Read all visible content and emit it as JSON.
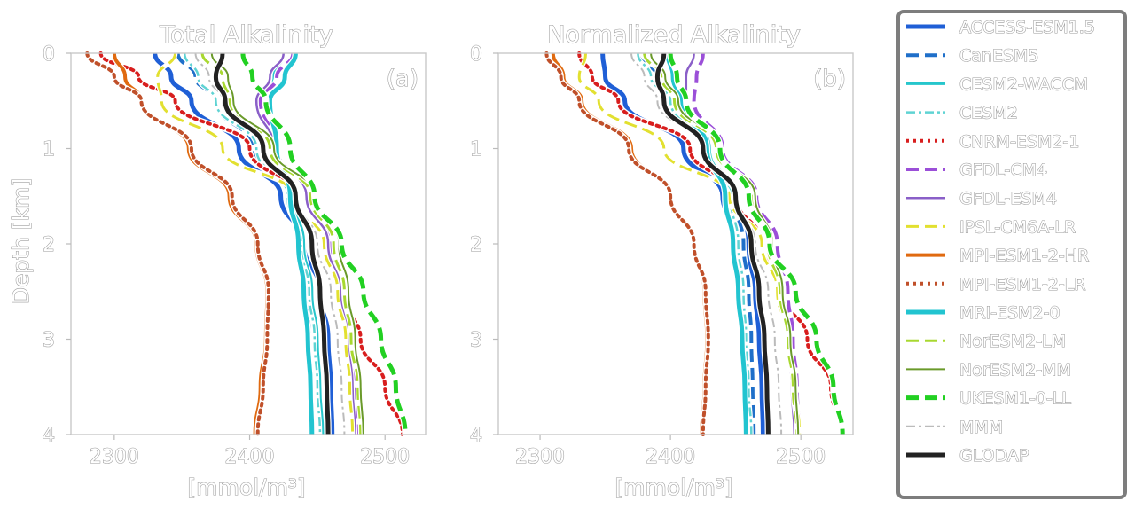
{
  "chart_data": [
    {
      "type": "line",
      "panel": "a",
      "title": "Total Alkalinity",
      "panel_label": "(a)",
      "xlabel": "[mmol/m³]",
      "ylabel": "Depth [km]",
      "xlim": [
        2268,
        2530
      ],
      "ylim": [
        4,
        0
      ],
      "xticks": [
        2300,
        2400,
        2500
      ],
      "yticks": [
        0,
        1,
        2,
        3,
        4
      ],
      "y": [
        0,
        0.25,
        0.5,
        1.0,
        1.5,
        2.0,
        2.5,
        3.0,
        3.5,
        4.0
      ],
      "series": [
        {
          "name": "ACCESS-ESM1.5",
          "x": [
            2330,
            2342,
            2357,
            2392,
            2423,
            2440,
            2452,
            2458,
            2460,
            2461
          ]
        },
        {
          "name": "CanESM5",
          "x": [
            2347,
            2360,
            2375,
            2403,
            2428,
            2438,
            2442,
            2444,
            2445,
            2446
          ]
        },
        {
          "name": "CESM2-WACCM",
          "x": [
            2425,
            2418,
            2410,
            2418,
            2432,
            2440,
            2446,
            2450,
            2452,
            2454
          ]
        },
        {
          "name": "CESM2",
          "x": [
            2352,
            2362,
            2375,
            2405,
            2428,
            2438,
            2444,
            2448,
            2450,
            2452
          ]
        },
        {
          "name": "CNRM-ESM2-1",
          "x": [
            2290,
            2318,
            2345,
            2400,
            2432,
            2455,
            2467,
            2482,
            2500,
            2513
          ]
        },
        {
          "name": "GFDL-CM4",
          "x": [
            2432,
            2420,
            2408,
            2420,
            2444,
            2460,
            2469,
            2475,
            2478,
            2480
          ]
        },
        {
          "name": "GFDL-ESM4",
          "x": [
            2425,
            2415,
            2405,
            2418,
            2442,
            2458,
            2467,
            2473,
            2476,
            2478
          ]
        },
        {
          "name": "IPSL-CM6A-LR",
          "x": [
            2345,
            2332,
            2335,
            2380,
            2432,
            2455,
            2465,
            2471,
            2474,
            2476
          ]
        },
        {
          "name": "MPI-ESM1-2-HR",
          "x": [
            2300,
            2308,
            2320,
            2355,
            2385,
            2405,
            2413,
            2412,
            2408,
            2404
          ]
        },
        {
          "name": "MPI-ESM1-2-LR",
          "x": [
            2280,
            2300,
            2320,
            2357,
            2387,
            2406,
            2414,
            2413,
            2410,
            2406
          ]
        },
        {
          "name": "MRI-ESM2-0",
          "x": [
            2434,
            2426,
            2415,
            2420,
            2430,
            2436,
            2440,
            2443,
            2445,
            2446
          ]
        },
        {
          "name": "NorESM2-LM",
          "x": [
            2365,
            2380,
            2385,
            2415,
            2445,
            2462,
            2470,
            2475,
            2480,
            2482
          ]
        },
        {
          "name": "NorESM2-MM",
          "x": [
            2372,
            2384,
            2388,
            2418,
            2448,
            2466,
            2473,
            2478,
            2482,
            2484
          ]
        },
        {
          "name": "UKESM1-0-LL",
          "x": [
            2395,
            2402,
            2412,
            2430,
            2448,
            2468,
            2484,
            2497,
            2508,
            2515
          ]
        },
        {
          "name": "MMM",
          "x": [
            2360,
            2370,
            2380,
            2410,
            2435,
            2450,
            2460,
            2465,
            2468,
            2470
          ]
        },
        {
          "name": "GLODAP",
          "x": [
            2380,
            2375,
            2382,
            2410,
            2434,
            2446,
            2452,
            2455,
            2457,
            2458
          ]
        }
      ]
    },
    {
      "type": "line",
      "panel": "b",
      "title": "Normalized Alkalinity",
      "panel_label": "(b)",
      "xlabel": "[mmol/m³]",
      "ylabel": "",
      "xlim": [
        2268,
        2540
      ],
      "ylim": [
        4,
        0
      ],
      "xticks": [
        2300,
        2400,
        2500
      ],
      "yticks": [
        0,
        1,
        2,
        3,
        4
      ],
      "y": [
        0,
        0.25,
        0.5,
        1.0,
        1.5,
        2.0,
        2.5,
        3.0,
        3.5,
        4.0
      ],
      "series": [
        {
          "name": "ACCESS-ESM1.5",
          "x": [
            2348,
            2350,
            2365,
            2410,
            2440,
            2458,
            2465,
            2468,
            2470,
            2471
          ]
        },
        {
          "name": "CanESM5",
          "x": [
            2375,
            2390,
            2405,
            2430,
            2448,
            2456,
            2460,
            2462,
            2463,
            2464
          ]
        },
        {
          "name": "CESM2-WACCM",
          "x": [
            2385,
            2395,
            2410,
            2430,
            2446,
            2452,
            2455,
            2457,
            2459,
            2460
          ]
        },
        {
          "name": "CESM2",
          "x": [
            2375,
            2385,
            2400,
            2428,
            2446,
            2452,
            2456,
            2458,
            2460,
            2462
          ]
        },
        {
          "name": "CNRM-ESM2-1",
          "x": [
            2330,
            2340,
            2360,
            2415,
            2450,
            2470,
            2485,
            2505,
            2523,
            2532
          ]
        },
        {
          "name": "GFDL-CM4",
          "x": [
            2425,
            2420,
            2418,
            2440,
            2466,
            2482,
            2490,
            2494,
            2497,
            2499
          ]
        },
        {
          "name": "GFDL-ESM4",
          "x": [
            2418,
            2412,
            2412,
            2436,
            2462,
            2478,
            2486,
            2490,
            2493,
            2495
          ]
        },
        {
          "name": "IPSL-CM6A-LR",
          "x": [
            2335,
            2330,
            2345,
            2395,
            2445,
            2470,
            2482,
            2491,
            2496,
            2499
          ]
        },
        {
          "name": "MPI-ESM1-2-HR",
          "x": [
            2310,
            2318,
            2332,
            2370,
            2400,
            2418,
            2426,
            2428,
            2426,
            2424
          ]
        },
        {
          "name": "MPI-ESM1-2-LR",
          "x": [
            2305,
            2316,
            2330,
            2368,
            2400,
            2418,
            2427,
            2429,
            2427,
            2425
          ]
        },
        {
          "name": "MRI-ESM2-0",
          "x": [
            2398,
            2402,
            2408,
            2428,
            2442,
            2448,
            2452,
            2455,
            2457,
            2458
          ]
        },
        {
          "name": "NorESM2-LM",
          "x": [
            2380,
            2393,
            2403,
            2435,
            2462,
            2475,
            2484,
            2490,
            2494,
            2497
          ]
        },
        {
          "name": "NorESM2-MM",
          "x": [
            2385,
            2396,
            2406,
            2438,
            2465,
            2478,
            2486,
            2492,
            2496,
            2498
          ]
        },
        {
          "name": "UKESM1-0-LL",
          "x": [
            2400,
            2405,
            2412,
            2438,
            2460,
            2476,
            2496,
            2512,
            2525,
            2532
          ]
        },
        {
          "name": "MMM",
          "x": [
            2370,
            2380,
            2390,
            2425,
            2450,
            2465,
            2475,
            2480,
            2483,
            2485
          ]
        },
        {
          "name": "GLODAP",
          "x": [
            2395,
            2390,
            2395,
            2425,
            2450,
            2462,
            2468,
            2472,
            2474,
            2475
          ]
        }
      ]
    }
  ],
  "legend": {
    "placement": "right",
    "entries": [
      {
        "name": "ACCESS-ESM1.5",
        "color": "#1f5fd6",
        "dash": "solid",
        "width": 5
      },
      {
        "name": "CanESM5",
        "color": "#1f6fc9",
        "dash": "dashed",
        "width": 4
      },
      {
        "name": "CESM2-WACCM",
        "color": "#26c6cc",
        "dash": "solid",
        "width": 3
      },
      {
        "name": "CESM2",
        "color": "#5fd3d3",
        "dash": "dashdot",
        "width": 2.5
      },
      {
        "name": "CNRM-ESM2-1",
        "color": "#d81e1e",
        "dash": "dotted",
        "width": 4
      },
      {
        "name": "GFDL-CM4",
        "color": "#9b4fd8",
        "dash": "dashed",
        "width": 4
      },
      {
        "name": "GFDL-ESM4",
        "color": "#8a5fc8",
        "dash": "solid",
        "width": 2.5
      },
      {
        "name": "IPSL-CM6A-LR",
        "color": "#e2e030",
        "dash": "dashed",
        "width": 3
      },
      {
        "name": "MPI-ESM1-2-HR",
        "color": "#e06a10",
        "dash": "solid",
        "width": 4
      },
      {
        "name": "MPI-ESM1-2-LR",
        "color": "#c0502a",
        "dash": "dotted",
        "width": 4
      },
      {
        "name": "MRI-ESM2-0",
        "color": "#22c4d0",
        "dash": "solid",
        "width": 5
      },
      {
        "name": "NorESM2-LM",
        "color": "#a8d830",
        "dash": "dashed",
        "width": 3
      },
      {
        "name": "NorESM2-MM",
        "color": "#6a9a2a",
        "dash": "solid",
        "width": 2
      },
      {
        "name": "UKESM1-0-LL",
        "color": "#22d022",
        "dash": "dashed",
        "width": 5
      },
      {
        "name": "MMM",
        "color": "#bbbbbb",
        "dash": "dashdot",
        "width": 2
      },
      {
        "name": "GLODAP",
        "color": "#222222",
        "dash": "solid",
        "width": 5
      }
    ]
  }
}
